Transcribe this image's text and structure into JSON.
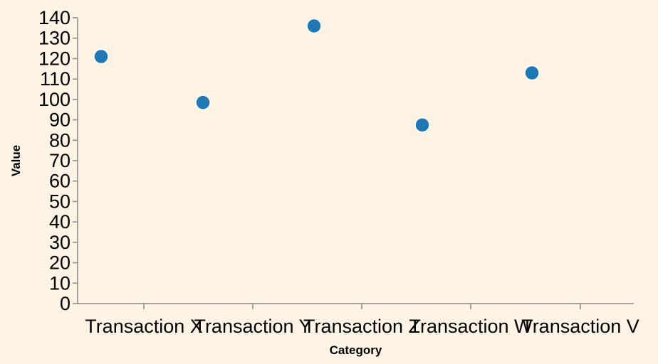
{
  "chart_data": {
    "type": "scatter",
    "categories": [
      "Transaction X",
      "Transaction Y",
      "Transaction Z",
      "Transaction W",
      "Transaction V"
    ],
    "values": [
      121,
      98.5,
      136,
      87.5,
      113
    ],
    "xlabel": "Category",
    "ylabel": "Value",
    "ylim": [
      0,
      140
    ],
    "yticks": [
      0,
      10,
      20,
      30,
      40,
      50,
      60,
      70,
      80,
      90,
      100,
      110,
      120,
      130,
      140
    ],
    "grid": false,
    "point_color": "#1f77b4",
    "axis_color": "#888888",
    "background": "#fdf3e4"
  }
}
